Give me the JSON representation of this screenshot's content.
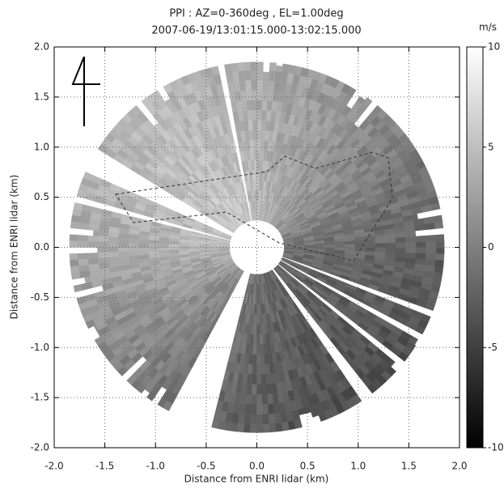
{
  "chart_data": {
    "type": "ppi",
    "title": "PPI : AZ=0-360deg , EL=1.00deg",
    "subtitle": "2007-06-19/13:01:15.000-13:02:15.000",
    "x_label": "Distance from ENRI lidar (km)",
    "y_label": "Distance from ENRI lidar (km)",
    "xlim": [
      -2.0,
      2.0
    ],
    "ylim": [
      -2.0,
      2.0
    ],
    "xticks": [
      {
        "value": -2.0,
        "label": "-2.0"
      },
      {
        "value": -1.5,
        "label": "-1.5"
      },
      {
        "value": -1.0,
        "label": "-1.0"
      },
      {
        "value": -0.5,
        "label": "-0.5"
      },
      {
        "value": 0.0,
        "label": "0.0"
      },
      {
        "value": 0.5,
        "label": "0.5"
      },
      {
        "value": 1.0,
        "label": "1.0"
      },
      {
        "value": 1.5,
        "label": "1.5"
      },
      {
        "value": 2.0,
        "label": "2.0"
      }
    ],
    "yticks": [
      {
        "value": -2.0,
        "label": "-2.0"
      },
      {
        "value": -1.5,
        "label": "-1.5"
      },
      {
        "value": -1.0,
        "label": "-1.0"
      },
      {
        "value": -0.5,
        "label": "-0.5"
      },
      {
        "value": 0.0,
        "label": "0.0"
      },
      {
        "value": 0.5,
        "label": "0.5"
      },
      {
        "value": 1.0,
        "label": "1.0"
      },
      {
        "value": 1.5,
        "label": "1.5"
      },
      {
        "value": 2.0,
        "label": "2.0"
      }
    ],
    "grid": true,
    "colorbar_label": "m/s",
    "clim": [
      -10,
      10
    ],
    "cticks": [
      -10,
      -5,
      0,
      5,
      10
    ]
  }
}
